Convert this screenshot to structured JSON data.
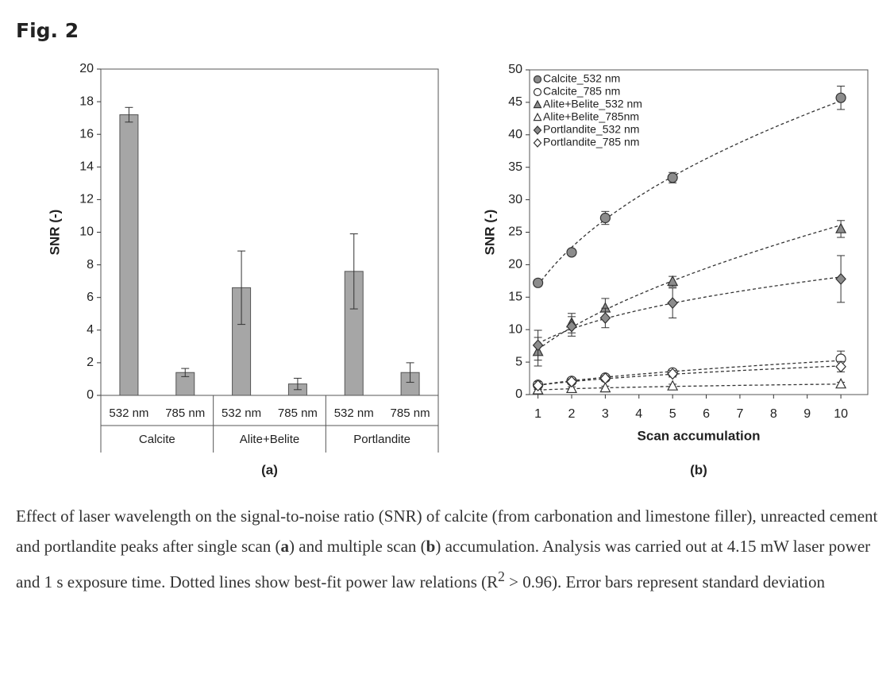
{
  "figure_label": "Fig. 2",
  "chart_data": [
    {
      "type": "bar",
      "panel_label": "(a)",
      "ylabel": "SNR (-)",
      "categories": [
        "532 nm",
        "785 nm",
        "532 nm",
        "785 nm",
        "532 nm",
        "785 nm"
      ],
      "groups": [
        "Calcite",
        "Alite+Belite",
        "Portlandite"
      ],
      "values": [
        17.2,
        1.4,
        6.6,
        0.7,
        7.6,
        1.4
      ],
      "errors": [
        0.45,
        0.25,
        2.25,
        0.35,
        2.3,
        0.6
      ],
      "color": "#a6a6a6",
      "ylim": [
        0,
        20
      ],
      "yticks": [
        0,
        2,
        4,
        6,
        8,
        10,
        12,
        14,
        16,
        18,
        20
      ]
    },
    {
      "type": "scatter",
      "panel_label": "(b)",
      "ylabel": "SNR (-)",
      "xlabel": "Scan accumulation",
      "x": [
        1,
        2,
        3,
        5,
        10
      ],
      "xlim": [
        0.75,
        10.8
      ],
      "xticks": [
        1,
        2,
        3,
        4,
        5,
        6,
        7,
        8,
        9,
        10
      ],
      "ylim": [
        0,
        50
      ],
      "yticks": [
        0,
        5,
        10,
        15,
        20,
        25,
        30,
        35,
        40,
        45,
        50
      ],
      "legend": "upper-left",
      "fit": "power-law",
      "series": [
        {
          "name": "Calcite_532 nm",
          "marker": "circle",
          "color": "#8c8c8c",
          "values": [
            17.2,
            21.9,
            27.2,
            33.4,
            45.7
          ],
          "errors": [
            0.5,
            0.5,
            1.0,
            0.8,
            1.8
          ]
        },
        {
          "name": "Calcite_785 nm",
          "marker": "circle",
          "color": "#ffffff",
          "values": [
            1.5,
            2.1,
            2.6,
            3.4,
            5.5
          ],
          "errors": [
            0.3,
            0.3,
            0.4,
            0.5,
            1.2
          ]
        },
        {
          "name": "Alite+Belite_532 nm",
          "marker": "triangle",
          "color": "#8c8c8c",
          "values": [
            6.6,
            11.0,
            13.3,
            17.4,
            25.5
          ],
          "errors": [
            2.2,
            1.5,
            1.5,
            0.8,
            1.3
          ]
        },
        {
          "name": "Alite+Belite_785nm",
          "marker": "triangle",
          "color": "#ffffff",
          "values": [
            0.7,
            0.9,
            1.0,
            1.3,
            1.6
          ],
          "errors": [
            0.3,
            0.3,
            0.3,
            0.3,
            0.3
          ]
        },
        {
          "name": "Portlandite_532 nm",
          "marker": "diamond",
          "color": "#8c8c8c",
          "values": [
            7.6,
            10.5,
            11.8,
            14.1,
            17.8
          ],
          "errors": [
            2.3,
            1.5,
            1.5,
            2.3,
            3.6
          ]
        },
        {
          "name": "Portlandite_785 nm",
          "marker": "diamond",
          "color": "#ffffff",
          "values": [
            1.4,
            2.0,
            2.5,
            3.2,
            4.3
          ],
          "errors": [
            0.6,
            0.4,
            0.4,
            0.5,
            0.8
          ]
        }
      ]
    }
  ],
  "caption": [
    "Effect of laser wavelength on the signal-to-noise ratio (SNR) of calcite (from carbonation and limestone filler), unreacted cement and portlandite peaks after single scan (",
    "a",
    ") and multiple scan (",
    "b",
    ") accumulation. Analysis was carried out at 4.15 mW laser power and 1 s exposure time. Dotted lines show best-fit power law relations (R",
    "2",
    " > 0.96). Error bars represent standard deviation"
  ]
}
